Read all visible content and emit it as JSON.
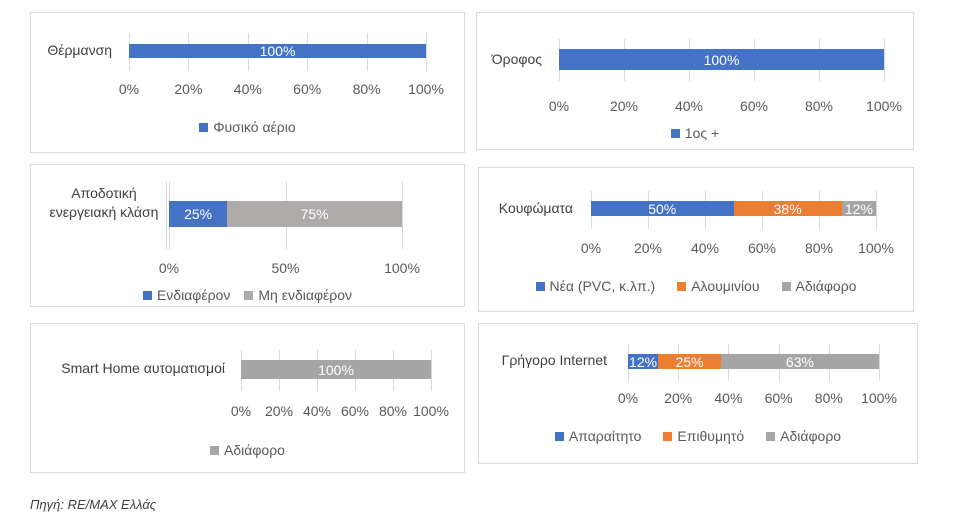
{
  "colors": {
    "blue": "#4472c4",
    "orange": "#ed7d31",
    "gray": "#a5a5a5",
    "warmgray": "#aeaaaa"
  },
  "chart_data": [
    {
      "type": "bar",
      "orientation": "horizontal-stacked",
      "category": "Θέρμανση",
      "series": [
        {
          "name": "Φυσικό αέριο",
          "values": [
            100
          ],
          "color": "#4472c4",
          "label": "100%"
        }
      ],
      "ticks": [
        "0%",
        "20%",
        "40%",
        "60%",
        "80%",
        "100%"
      ],
      "xlim": [
        0,
        100
      ],
      "legend": "bottom"
    },
    {
      "type": "bar",
      "orientation": "horizontal-stacked",
      "category": "Όροφος",
      "series": [
        {
          "name": "1ος +",
          "values": [
            100
          ],
          "color": "#4472c4",
          "label": "100%"
        }
      ],
      "ticks": [
        "0%",
        "20%",
        "40%",
        "60%",
        "80%",
        "100%"
      ],
      "xlim": [
        0,
        100
      ],
      "legend": "bottom"
    },
    {
      "type": "bar",
      "orientation": "horizontal-stacked",
      "category": "Αποδοτική ενεργειακή κλάση",
      "series": [
        {
          "name": "Ενδιαφέρον",
          "values": [
            25
          ],
          "color": "#4472c4",
          "label": "25%"
        },
        {
          "name": "Μη ενδιαφέρον",
          "values": [
            75
          ],
          "color": "#aeaaaa",
          "label": "75%"
        }
      ],
      "ticks": [
        "0%",
        "50%",
        "100%"
      ],
      "xlim": [
        0,
        100
      ],
      "legend": "bottom"
    },
    {
      "type": "bar",
      "orientation": "horizontal-stacked",
      "category": "Κουφώματα",
      "series": [
        {
          "name": "Νέα (PVC, κ.λπ.)",
          "values": [
            50
          ],
          "color": "#4472c4",
          "label": "50%"
        },
        {
          "name": "Αλουμινίου",
          "values": [
            38
          ],
          "color": "#ed7d31",
          "label": "38%"
        },
        {
          "name": "Αδιάφορο",
          "values": [
            12
          ],
          "color": "#a5a5a5",
          "label": "12%"
        }
      ],
      "ticks": [
        "0%",
        "20%",
        "40%",
        "60%",
        "80%",
        "100%"
      ],
      "xlim": [
        0,
        100
      ],
      "legend": "bottom"
    },
    {
      "type": "bar",
      "orientation": "horizontal-stacked",
      "category": "Smart Home αυτοματισμοί",
      "series": [
        {
          "name": "Αδιάφορο",
          "values": [
            100
          ],
          "color": "#a5a5a5",
          "label": "100%"
        }
      ],
      "ticks": [
        "0%",
        "20%",
        "40%",
        "60%",
        "80%",
        "100%"
      ],
      "xlim": [
        0,
        100
      ],
      "legend": "bottom"
    },
    {
      "type": "bar",
      "orientation": "horizontal-stacked",
      "category": "Γρήγορο Internet",
      "series": [
        {
          "name": "Απαραίτητο",
          "values": [
            12
          ],
          "color": "#4472c4",
          "label": "12%"
        },
        {
          "name": "Επιθυμητό",
          "values": [
            25
          ],
          "color": "#ed7d31",
          "label": "25%"
        },
        {
          "name": "Αδιάφορο",
          "values": [
            63
          ],
          "color": "#a5a5a5",
          "label": "63%"
        }
      ],
      "ticks": [
        "0%",
        "20%",
        "40%",
        "60%",
        "80%",
        "100%"
      ],
      "xlim": [
        0,
        100
      ],
      "legend": "bottom"
    }
  ],
  "source": "Πηγή: RE/MAX Ελλάς"
}
